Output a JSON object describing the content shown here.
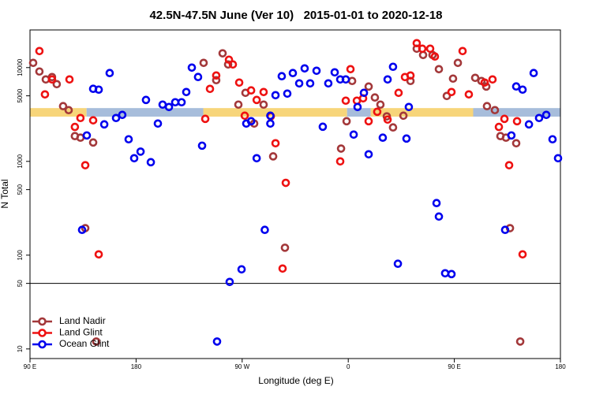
{
  "chart_data": {
    "type": "scatter",
    "title": "42.5N-47.5N June (Ver 10)   2015-01-01 to 2020-12-18",
    "x_label": "Longitude (deg E)",
    "y_label": "N Total",
    "log_y": true,
    "xlim": [
      90,
      540
    ],
    "ylim": [
      7.9,
      25200
    ],
    "xticks": [
      {
        "value": 90,
        "label": "90 E"
      },
      180,
      {
        "value": 270,
        "label": "90 W"
      },
      {
        "value": 360,
        "label": "0"
      },
      {
        "value": 450,
        "label": "90 E"
      },
      {
        "value": 540,
        "label": "180"
      }
    ],
    "yticks": [
      10,
      50,
      100,
      500,
      1000,
      5000,
      10000
    ],
    "hline": 50,
    "legend": "bottom-left",
    "bands": [
      {
        "from": 90,
        "to": 138,
        "low": 3000,
        "high": 3700,
        "color": "#f7d57a"
      },
      {
        "from": 138,
        "to": 237,
        "low": 3000,
        "high": 3700,
        "color": "#a7bddb"
      },
      {
        "from": 237,
        "to": 359,
        "low": 3000,
        "high": 3700,
        "color": "#f7d57a"
      },
      {
        "from": 359,
        "to": 379,
        "low": 3000,
        "high": 3700,
        "color": "#a7bddb"
      },
      {
        "from": 379,
        "to": 466,
        "low": 3000,
        "high": 3700,
        "color": "#f7d57a"
      },
      {
        "from": 466,
        "to": 540,
        "low": 3000,
        "high": 3700,
        "color": "#a7bddb"
      }
    ],
    "series": [
      {
        "name": "Land Nadir",
        "color": "#a3383a",
        "x": [
          92.7,
          98.0,
          103.4,
          108.7,
          112.7,
          118.1,
          122.8,
          128.1,
          132.8,
          143.6,
          136.9,
          237.3,
          248.0,
          253.4,
          258.1,
          266.8,
          272.8,
          280.2,
          288.2,
          296.3,
          306.3,
          353.9,
          358.6,
          363.3,
          377.3,
          382.6,
          387.3,
          392.7,
          398.0,
          406.8,
          412.8,
          418.1,
          423.5,
          431.5,
          436.9,
          443.6,
          448.9,
          453.0,
          467.7,
          473.0,
          477.1,
          477.7,
          484.4,
          489.1,
          493.8,
          502.5,
          497.2,
          505.9,
          146.2
        ],
        "values": [
          11230,
          9080,
          7480,
          7925,
          6660,
          3880,
          3520,
          1860,
          1790,
          1590,
          194,
          11230,
          7340,
          14200,
          10800,
          4030,
          5380,
          2530,
          4030,
          1130,
          120,
          1370,
          2680,
          7200,
          6280,
          4800,
          4030,
          3020,
          2300,
          3070,
          7200,
          15900,
          13630,
          13630,
          9620,
          4980,
          7630,
          11230,
          7775,
          7200,
          6280,
          3880,
          3520,
          1860,
          1790,
          1560,
          194,
          12,
          12
        ]
      },
      {
        "name": "Land Glint",
        "color": "#ee1111",
        "x": [
          98.0,
          102.7,
          108.7,
          123.5,
          128.1,
          132.8,
          136.9,
          143.6,
          148.3,
          238.7,
          242.7,
          248.0,
          258.8,
          262.1,
          267.5,
          272.2,
          277.6,
          282.3,
          288.2,
          294.3,
          298.3,
          304.3,
          307.0,
          353.2,
          357.9,
          361.9,
          367.3,
          372.6,
          377.3,
          384.6,
          393.4,
          402.7,
          408.1,
          412.8,
          418.1,
          422.8,
          429.5,
          433.5,
          447.6,
          457.0,
          462.3,
          475.7,
          482.4,
          487.8,
          492.5,
          496.5,
          503.2,
          507.9
        ],
        "values": [
          15010,
          5180,
          7480,
          7480,
          2330,
          2900,
          910,
          2740,
          102,
          2840,
          5930,
          8240,
          12140,
          10800,
          6920,
          3070,
          5710,
          4520,
          5490,
          3020,
          1560,
          72,
          590,
          1000,
          4440,
          9620,
          4440,
          4700,
          2680,
          3380,
          2790,
          5380,
          7925,
          8240,
          18220,
          15900,
          15900,
          13120,
          5490,
          15010,
          5180,
          6920,
          7480,
          2330,
          2840,
          910,
          2680,
          102
        ]
      },
      {
        "name": "Ocean Glint",
        "color": "#0000ee",
        "x": [
          134.2,
          138.2,
          143.6,
          148.3,
          153.0,
          157.6,
          163.0,
          168.3,
          173.7,
          178.4,
          183.8,
          188.4,
          192.5,
          198.5,
          202.5,
          207.9,
          213.2,
          218.6,
          222.6,
          227.3,
          232.6,
          236.0,
          248.7,
          259.4,
          269.5,
          273.5,
          277.6,
          282.3,
          289.2,
          293.9,
          293.9,
          298.3,
          303.6,
          308.3,
          313.0,
          318.4,
          323.0,
          327.7,
          333.1,
          338.4,
          343.1,
          348.5,
          353.2,
          357.9,
          364.6,
          367.9,
          373.3,
          377.3,
          389.3,
          393.4,
          398.0,
          402.1,
          409.4,
          411.4,
          434.9,
          436.9,
          442.2,
          447.6,
          493.1,
          498.4,
          502.5,
          507.9,
          513.3,
          517.3,
          521.9,
          528.0,
          533.3,
          538.0
        ],
        "values": [
          186,
          1890,
          5940,
          5820,
          2480,
          8740,
          2900,
          3130,
          1720,
          1080,
          1270,
          4520,
          980,
          2530,
          4030,
          3800,
          4270,
          4270,
          5490,
          10000,
          7940,
          1470,
          12,
          51.8,
          70.6,
          2530,
          2680,
          1080,
          186,
          3070,
          2530,
          5080,
          8090,
          5280,
          8740,
          6790,
          9810,
          6790,
          9250,
          2340,
          6790,
          8900,
          7480,
          7480,
          1930,
          3800,
          5380,
          1190,
          1790,
          7480,
          10200,
          81,
          1750,
          3800,
          359,
          258,
          64.1,
          62.8,
          186,
          1890,
          6290,
          5820,
          2480,
          8740,
          2900,
          3130,
          1720,
          1080
        ]
      }
    ]
  }
}
